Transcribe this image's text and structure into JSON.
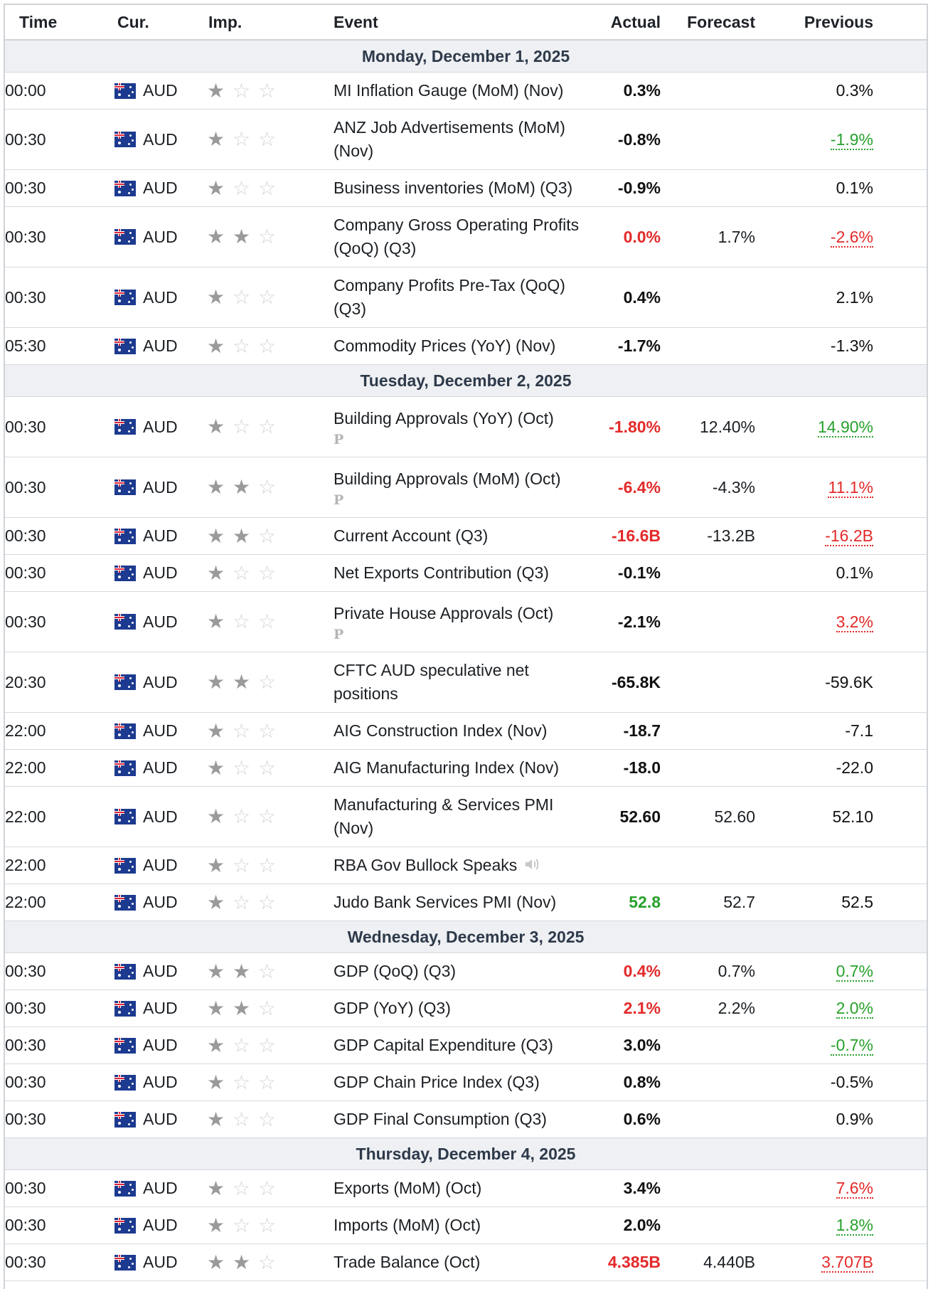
{
  "headers": {
    "time": "Time",
    "cur": "Cur.",
    "imp": "Imp.",
    "event": "Event",
    "actual": "Actual",
    "forecast": "Forecast",
    "previous": "Previous"
  },
  "icons": {
    "flag": "australia-flag-icon",
    "star": "star-icon",
    "preliminary": "preliminary-p-icon",
    "speaker": "speaker-icon"
  },
  "colors": {
    "negative": "#e32a2a",
    "positive": "#27a12c",
    "day_header_bg": "#eef0f3",
    "border": "#cfd3d8"
  },
  "rows": [
    {
      "type": "day",
      "label": "Monday, December 1, 2025"
    },
    {
      "type": "event",
      "time": "00:00",
      "currency": "AUD",
      "importance": 1,
      "event": "MI Inflation Gauge (MoM) (Nov)",
      "actual": "0.3%",
      "actual_status": "plain",
      "forecast": "",
      "previous": "0.3%",
      "previous_status": "plain"
    },
    {
      "type": "event",
      "time": "00:30",
      "currency": "AUD",
      "importance": 1,
      "event": "ANZ Job Advertisements (MoM) (Nov)",
      "tall": true,
      "actual": "-0.8%",
      "actual_status": "plain",
      "forecast": "",
      "previous": "-1.9%",
      "previous_status": "rev-pos"
    },
    {
      "type": "event",
      "time": "00:30",
      "currency": "AUD",
      "importance": 1,
      "event": "Business inventories (MoM) (Q3)",
      "actual": "-0.9%",
      "actual_status": "plain",
      "forecast": "",
      "previous": "0.1%",
      "previous_status": "plain"
    },
    {
      "type": "event",
      "time": "00:30",
      "currency": "AUD",
      "importance": 2,
      "event": "Company Gross Operating Profits (QoQ) (Q3)",
      "tall": true,
      "actual": "0.0%",
      "actual_status": "neg",
      "forecast": "1.7%",
      "previous": "-2.6%",
      "previous_status": "rev-neg"
    },
    {
      "type": "event",
      "time": "00:30",
      "currency": "AUD",
      "importance": 1,
      "event": "Company Profits Pre-Tax (QoQ) (Q3)",
      "tall": true,
      "actual": "0.4%",
      "actual_status": "plain",
      "forecast": "",
      "previous": "2.1%",
      "previous_status": "plain"
    },
    {
      "type": "event",
      "time": "05:30",
      "currency": "AUD",
      "importance": 1,
      "event": "Commodity Prices (YoY) (Nov)",
      "actual": "-1.7%",
      "actual_status": "plain",
      "forecast": "",
      "previous": "-1.3%",
      "previous_status": "plain"
    },
    {
      "type": "day",
      "label": "Tuesday, December 2, 2025"
    },
    {
      "type": "event",
      "time": "00:30",
      "currency": "AUD",
      "importance": 1,
      "event": "Building Approvals (YoY) (Oct)",
      "tall": true,
      "preliminary": "P",
      "actual": "-1.80%",
      "actual_status": "neg",
      "forecast": "12.40%",
      "previous": "14.90%",
      "previous_status": "rev-pos"
    },
    {
      "type": "event",
      "time": "00:30",
      "currency": "AUD",
      "importance": 2,
      "event": "Building Approvals (MoM) (Oct)",
      "tall": true,
      "preliminary": "P",
      "actual": "-6.4%",
      "actual_status": "neg",
      "forecast": "-4.3%",
      "previous": "11.1%",
      "previous_status": "rev-neg"
    },
    {
      "type": "event",
      "time": "00:30",
      "currency": "AUD",
      "importance": 2,
      "event": "Current Account (Q3)",
      "actual": "-16.6B",
      "actual_status": "neg",
      "forecast": "-13.2B",
      "previous": "-16.2B",
      "previous_status": "rev-neg"
    },
    {
      "type": "event",
      "time": "00:30",
      "currency": "AUD",
      "importance": 1,
      "event": "Net Exports Contribution (Q3)",
      "actual": "-0.1%",
      "actual_status": "plain",
      "forecast": "",
      "previous": "0.1%",
      "previous_status": "plain"
    },
    {
      "type": "event",
      "time": "00:30",
      "currency": "AUD",
      "importance": 1,
      "event": "Private House Approvals (Oct)",
      "tall": true,
      "preliminary": "P",
      "actual": "-2.1%",
      "actual_status": "plain",
      "forecast": "",
      "previous": "3.2%",
      "previous_status": "rev-neg"
    },
    {
      "type": "event",
      "time": "20:30",
      "currency": "AUD",
      "importance": 2,
      "event": "CFTC AUD speculative net positions",
      "tall": true,
      "actual": "-65.8K",
      "actual_status": "plain",
      "forecast": "",
      "previous": "-59.6K",
      "previous_status": "plain"
    },
    {
      "type": "event",
      "time": "22:00",
      "currency": "AUD",
      "importance": 1,
      "event": "AIG Construction Index (Nov)",
      "actual": "-18.7",
      "actual_status": "plain",
      "forecast": "",
      "previous": "-7.1",
      "previous_status": "plain"
    },
    {
      "type": "event",
      "time": "22:00",
      "currency": "AUD",
      "importance": 1,
      "event": "AIG Manufacturing Index (Nov)",
      "actual": "-18.0",
      "actual_status": "plain",
      "forecast": "",
      "previous": "-22.0",
      "previous_status": "plain"
    },
    {
      "type": "event",
      "time": "22:00",
      "currency": "AUD",
      "importance": 1,
      "event": "Manufacturing & Services PMI (Nov)",
      "tall": true,
      "actual": "52.60",
      "actual_status": "plain",
      "forecast": "52.60",
      "previous": "52.10",
      "previous_status": "plain"
    },
    {
      "type": "event",
      "time": "22:00",
      "currency": "AUD",
      "importance": 1,
      "event": "RBA Gov Bullock Speaks",
      "speech": true,
      "actual": "",
      "actual_status": "plain",
      "forecast": "",
      "previous": "",
      "previous_status": "plain"
    },
    {
      "type": "event",
      "time": "22:00",
      "currency": "AUD",
      "importance": 1,
      "event": "Judo Bank Services PMI (Nov)",
      "actual": "52.8",
      "actual_status": "pos",
      "forecast": "52.7",
      "previous": "52.5",
      "previous_status": "plain"
    },
    {
      "type": "day",
      "label": "Wednesday, December 3, 2025"
    },
    {
      "type": "event",
      "time": "00:30",
      "currency": "AUD",
      "importance": 2,
      "event": "GDP (QoQ) (Q3)",
      "actual": "0.4%",
      "actual_status": "neg",
      "forecast": "0.7%",
      "previous": "0.7%",
      "previous_status": "rev-pos"
    },
    {
      "type": "event",
      "time": "00:30",
      "currency": "AUD",
      "importance": 2,
      "event": "GDP (YoY) (Q3)",
      "actual": "2.1%",
      "actual_status": "neg",
      "forecast": "2.2%",
      "previous": "2.0%",
      "previous_status": "rev-pos"
    },
    {
      "type": "event",
      "time": "00:30",
      "currency": "AUD",
      "importance": 1,
      "event": "GDP Capital Expenditure (Q3)",
      "actual": "3.0%",
      "actual_status": "plain",
      "forecast": "",
      "previous": "-0.7%",
      "previous_status": "rev-pos"
    },
    {
      "type": "event",
      "time": "00:30",
      "currency": "AUD",
      "importance": 1,
      "event": "GDP Chain Price Index (Q3)",
      "actual": "0.8%",
      "actual_status": "plain",
      "forecast": "",
      "previous": "-0.5%",
      "previous_status": "plain"
    },
    {
      "type": "event",
      "time": "00:30",
      "currency": "AUD",
      "importance": 1,
      "event": "GDP Final Consumption (Q3)",
      "actual": "0.6%",
      "actual_status": "plain",
      "forecast": "",
      "previous": "0.9%",
      "previous_status": "plain"
    },
    {
      "type": "day",
      "label": "Thursday, December 4, 2025"
    },
    {
      "type": "event",
      "time": "00:30",
      "currency": "AUD",
      "importance": 1,
      "event": "Exports (MoM) (Oct)",
      "actual": "3.4%",
      "actual_status": "plain",
      "forecast": "",
      "previous": "7.6%",
      "previous_status": "rev-neg"
    },
    {
      "type": "event",
      "time": "00:30",
      "currency": "AUD",
      "importance": 1,
      "event": "Imports (MoM) (Oct)",
      "actual": "2.0%",
      "actual_status": "plain",
      "forecast": "",
      "previous": "1.8%",
      "previous_status": "rev-pos"
    },
    {
      "type": "event",
      "time": "00:30",
      "currency": "AUD",
      "importance": 2,
      "event": "Trade Balance (Oct)",
      "actual": "4.385B",
      "actual_status": "neg",
      "forecast": "4.440B",
      "previous": "3.707B",
      "previous_status": "rev-neg"
    }
  ]
}
